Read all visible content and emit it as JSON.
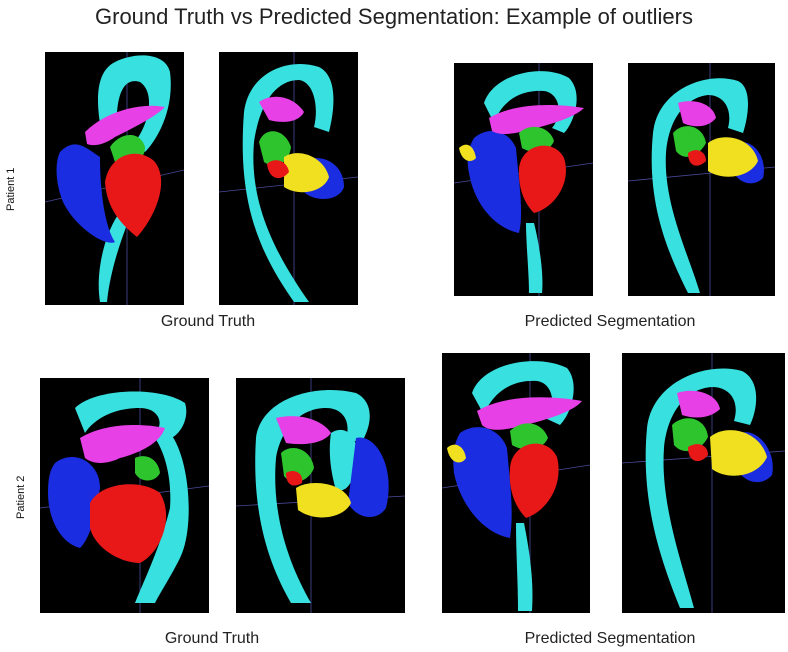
{
  "title": "Ground Truth vs Predicted Segmentation: Example of outliers",
  "patients": [
    {
      "label": "Patient 1",
      "gt_caption": "Ground Truth",
      "pred_caption": "Predicted Segmentation"
    },
    {
      "label": "Patient 2",
      "gt_caption": "Ground Truth",
      "pred_caption": "Predicted Segmentation"
    }
  ],
  "colors": {
    "aorta": "#38e0e0",
    "pulmonary": "#e640e6",
    "left_atrium": "#2ec42e",
    "left_ventricle": "#e81818",
    "right_ventricle": "#1a2de0",
    "right_atrium": "#f0e020",
    "background": "#000000",
    "axis": "#4a4a9a"
  }
}
